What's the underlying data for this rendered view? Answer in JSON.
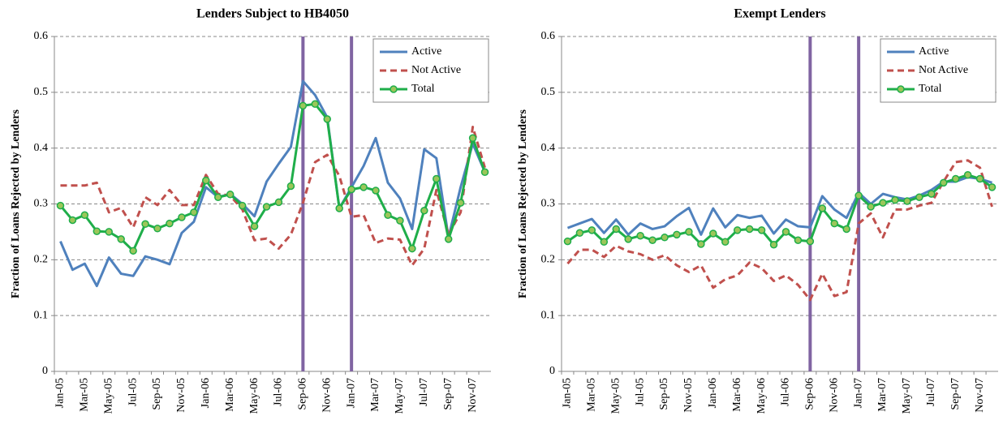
{
  "chart_data": [
    {
      "type": "line",
      "title": "Lenders Subject to HB4050",
      "y_label": "Fraction of Loans Rejected by Lenders",
      "categories": [
        "Jan-05",
        null,
        "Mar-05",
        null,
        "May-05",
        null,
        "Jul-05",
        null,
        "Sep-05",
        null,
        "Nov-05",
        null,
        "Jan-06",
        null,
        "Mar-06",
        null,
        "May-06",
        null,
        "Jul-06",
        null,
        "Sep-06",
        null,
        "Nov-06",
        null,
        "Jan-07",
        null,
        "Mar-07",
        null,
        "May-07",
        null,
        "Jul-07",
        null,
        "Sep-07",
        null,
        "Nov-07",
        null
      ],
      "ylim": [
        0,
        0.6
      ],
      "yticks": [
        0,
        0.1,
        0.2,
        0.3,
        0.4,
        0.5,
        0.6
      ],
      "grid": true,
      "legend": "top-right",
      "vlines": {
        "color": "#8064a2",
        "at": [
          "Sep-06",
          "Jan-07"
        ]
      },
      "series": [
        {
          "name": "Active",
          "color": "#4f81bd",
          "dash": false,
          "markers": false,
          "values": [
            0.233,
            0.182,
            0.193,
            0.153,
            0.204,
            0.175,
            0.171,
            0.206,
            0.2,
            0.192,
            0.248,
            0.268,
            0.33,
            0.312,
            0.318,
            0.3,
            0.278,
            0.34,
            0.372,
            0.402,
            0.52,
            0.495,
            0.455,
            0.292,
            0.33,
            0.368,
            0.418,
            0.338,
            0.31,
            0.255,
            0.398,
            0.382,
            0.24,
            0.33,
            0.408,
            0.357
          ]
        },
        {
          "name": "Not Active",
          "color": "#c0504d",
          "dash": true,
          "markers": false,
          "values": [
            0.333,
            0.333,
            0.333,
            0.338,
            0.285,
            0.293,
            0.258,
            0.312,
            0.298,
            0.325,
            0.298,
            0.298,
            0.352,
            0.318,
            0.315,
            0.29,
            0.235,
            0.238,
            0.22,
            0.245,
            0.302,
            0.375,
            0.388,
            0.35,
            0.277,
            0.28,
            0.23,
            0.238,
            0.236,
            0.19,
            0.22,
            0.325,
            0.245,
            0.285,
            0.438,
            0.365
          ]
        },
        {
          "name": "Total",
          "color": "#1fae4a",
          "dash": false,
          "markers": true,
          "marker_fill": "#9bc65a",
          "values": [
            0.297,
            0.271,
            0.28,
            0.251,
            0.25,
            0.237,
            0.216,
            0.264,
            0.256,
            0.265,
            0.276,
            0.285,
            0.342,
            0.312,
            0.317,
            0.297,
            0.26,
            0.295,
            0.303,
            0.332,
            0.476,
            0.479,
            0.452,
            0.292,
            0.326,
            0.33,
            0.324,
            0.28,
            0.27,
            0.22,
            0.288,
            0.345,
            0.237,
            0.302,
            0.418,
            0.357
          ]
        }
      ]
    },
    {
      "type": "line",
      "title": "Exempt Lenders",
      "y_label": "Fraction of Loans Rejected by Lenders",
      "categories": [
        "Jan-05",
        null,
        "Mar-05",
        null,
        "May-05",
        null,
        "Jul-05",
        null,
        "Sep-05",
        null,
        "Nov-05",
        null,
        "Jan-06",
        null,
        "Mar-06",
        null,
        "May-06",
        null,
        "Jul-06",
        null,
        "Sep-06",
        null,
        "Nov-06",
        null,
        "Jan-07",
        null,
        "Mar-07",
        null,
        "May-07",
        null,
        "Jul-07",
        null,
        "Sep-07",
        null,
        "Nov-07",
        null
      ],
      "ylim": [
        0,
        0.6
      ],
      "yticks": [
        0,
        0.1,
        0.2,
        0.3,
        0.4,
        0.5,
        0.6
      ],
      "grid": true,
      "legend": "top-right",
      "vlines": {
        "color": "#8064a2",
        "at": [
          "Sep-06",
          "Jan-07"
        ]
      },
      "series": [
        {
          "name": "Active",
          "color": "#4f81bd",
          "dash": false,
          "markers": false,
          "values": [
            0.257,
            0.265,
            0.273,
            0.248,
            0.272,
            0.245,
            0.265,
            0.255,
            0.26,
            0.278,
            0.293,
            0.245,
            0.292,
            0.258,
            0.28,
            0.275,
            0.279,
            0.247,
            0.272,
            0.26,
            0.258,
            0.314,
            0.29,
            0.275,
            0.32,
            0.3,
            0.318,
            0.312,
            0.308,
            0.315,
            0.325,
            0.34,
            0.34,
            0.348,
            0.345,
            0.338
          ]
        },
        {
          "name": "Not Active",
          "color": "#c0504d",
          "dash": true,
          "markers": false,
          "values": [
            0.193,
            0.218,
            0.218,
            0.205,
            0.225,
            0.215,
            0.21,
            0.2,
            0.208,
            0.19,
            0.178,
            0.19,
            0.15,
            0.165,
            0.172,
            0.195,
            0.185,
            0.162,
            0.172,
            0.155,
            0.128,
            0.175,
            0.135,
            0.142,
            0.265,
            0.283,
            0.24,
            0.29,
            0.29,
            0.297,
            0.302,
            0.34,
            0.375,
            0.378,
            0.365,
            0.295
          ]
        },
        {
          "name": "Total",
          "color": "#1fae4a",
          "dash": false,
          "markers": true,
          "marker_fill": "#9bc65a",
          "values": [
            0.233,
            0.248,
            0.253,
            0.232,
            0.255,
            0.237,
            0.243,
            0.235,
            0.24,
            0.245,
            0.25,
            0.228,
            0.247,
            0.232,
            0.253,
            0.255,
            0.253,
            0.227,
            0.25,
            0.235,
            0.233,
            0.292,
            0.265,
            0.255,
            0.315,
            0.295,
            0.302,
            0.307,
            0.305,
            0.312,
            0.318,
            0.338,
            0.345,
            0.352,
            0.345,
            0.33
          ]
        }
      ]
    }
  ]
}
